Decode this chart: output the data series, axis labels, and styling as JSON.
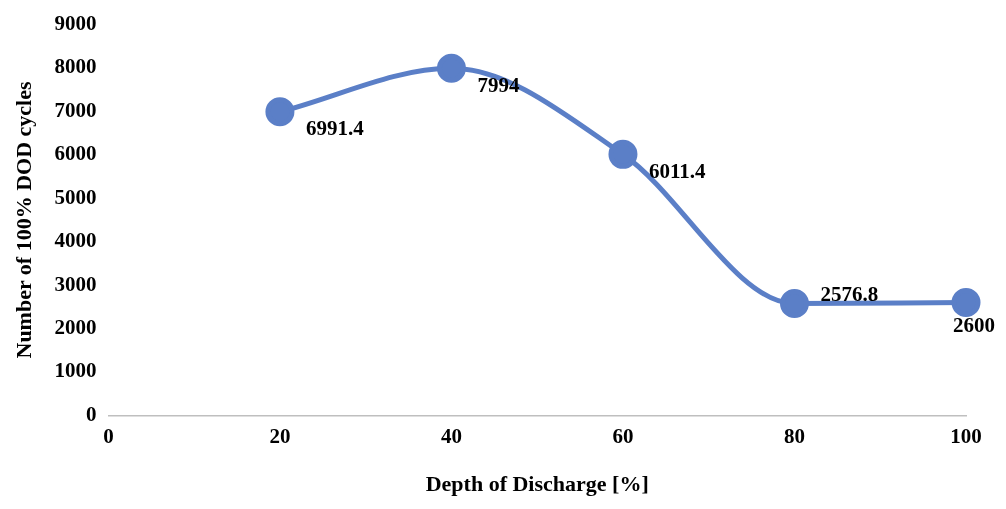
{
  "chart_data": {
    "type": "line",
    "xlabel": "Depth of Discharge [%]",
    "ylabel": "Number of 100% DOD cycles",
    "x": [
      20,
      40,
      60,
      80,
      100
    ],
    "series": [
      {
        "color": "#5b7fc7",
        "values": [
          6991.4,
          7994,
          6011.4,
          2576.8,
          2600
        ]
      }
    ],
    "xlim": [
      0,
      100
    ],
    "xticks": [
      0,
      20,
      40,
      60,
      80,
      100
    ],
    "ylim": [
      0,
      9000
    ],
    "yticks": [
      0,
      1000,
      2000,
      3000,
      4000,
      5000,
      6000,
      7000,
      8000,
      9000
    ],
    "grid": false,
    "legend": false,
    "marker": "circle",
    "line_style": "solid",
    "data_labels": true
  }
}
